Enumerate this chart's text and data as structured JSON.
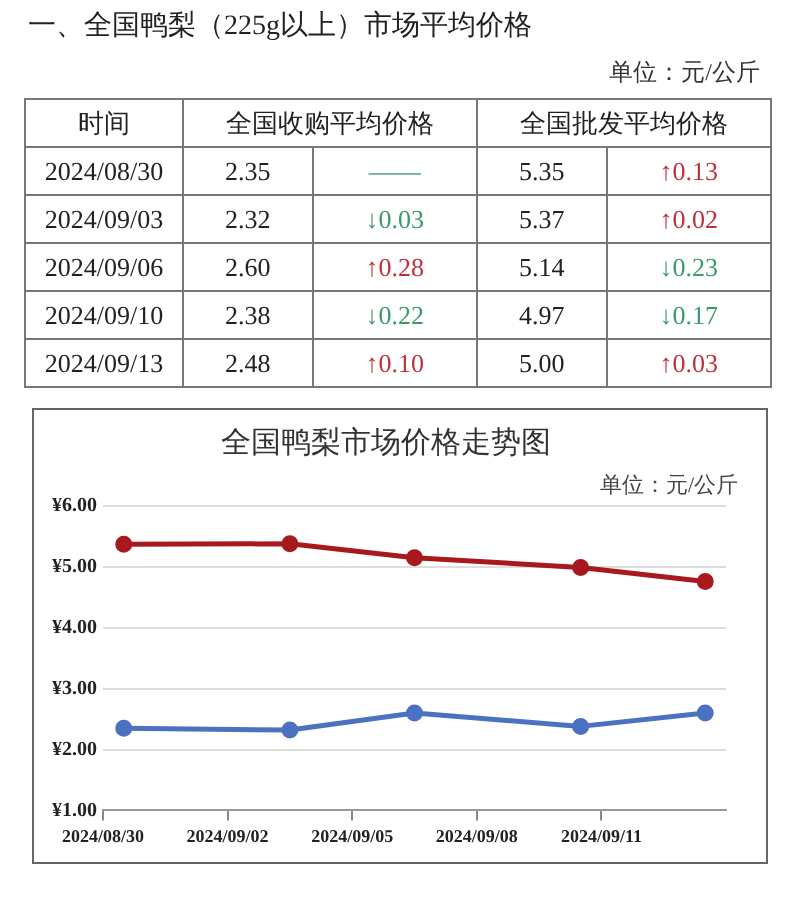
{
  "chart_data": [
    {
      "type": "other",
      "title": "一、全国鸭梨（225g以上）市场平均价格",
      "annotations": [
        "单位：元/公斤",
        "时间",
        "全国收购平均价格",
        "全国批发平均价格",
        "2024/08/30",
        "2.35",
        "——",
        "5.35",
        "↑0.13",
        "2024/09/03",
        "2.32",
        "↓0.03",
        "5.37",
        "↑0.02",
        "2024/09/06",
        "2.60",
        "↑0.28",
        "5.14",
        "↓0.23",
        "2024/09/10",
        "2.38",
        "↓0.22",
        "4.97",
        "↓0.17",
        "2024/09/13",
        "2.48",
        "↑0.10",
        "5.00",
        "↑0.03"
      ],
      "colors": [
        "#333333",
        "#222222",
        "#222222",
        "#222222",
        "#222222",
        "#222222",
        "#3a9a6a",
        "#222222",
        "#c0303a",
        "#222222",
        "#222222",
        "#3a9a6a",
        "#222222",
        "#c0303a",
        "#222222",
        "#222222",
        "#c0303a",
        "#222222",
        "#3a9a6a",
        "#222222",
        "#222222",
        "#3a9a6a",
        "#222222",
        "#3a9a6a",
        "#222222",
        "#222222",
        "#c0303a",
        "#222222",
        "#c0303a"
      ]
    },
    {
      "type": "line",
      "title": "全国鸭梨市场价格走势图",
      "annotations": [
        "单位：元/公斤"
      ],
      "series": [
        {
          "color": "#a8191d",
          "x": [
            "2024-08-30T12:00",
            "2024-09-03T12:00",
            "2024-09-06T12:00",
            "2024-09-10T12:00",
            "2024-09-13T12:00"
          ],
          "values": [
            5.37,
            5.38,
            5.15,
            4.99,
            4.76
          ]
        },
        {
          "color": "#4a72c0",
          "x": [
            "2024-08-30T12:00",
            "2024-09-03T12:00",
            "2024-09-06T12:00",
            "2024-09-10T12:00",
            "2024-09-13T12:00"
          ],
          "values": [
            2.35,
            2.32,
            2.6,
            2.38,
            2.6
          ]
        }
      ],
      "xlim": [
        "2024-08-30",
        "2024-09-14"
      ],
      "xticks": [
        {
          "value": "2024-08-30",
          "label": "2024/08/30"
        },
        {
          "value": "2024-09-02",
          "label": "2024/09/02"
        },
        {
          "value": "2024-09-05",
          "label": "2024/09/05"
        },
        {
          "value": "2024-09-08",
          "label": "2024/09/08"
        },
        {
          "value": "2024-09-11",
          "label": "2024/09/11"
        }
      ],
      "ylim": [
        1,
        6
      ],
      "yticks": [
        {
          "value": 1,
          "label": "¥1.00"
        },
        {
          "value": 2,
          "label": "¥2.00"
        },
        {
          "value": 3,
          "label": "¥3.00"
        },
        {
          "value": 4,
          "label": "¥4.00"
        },
        {
          "value": 5,
          "label": "¥5.00"
        },
        {
          "value": 6,
          "label": "¥6.00"
        }
      ],
      "grid": "y",
      "marker": "circle",
      "line_style": "solid"
    }
  ]
}
